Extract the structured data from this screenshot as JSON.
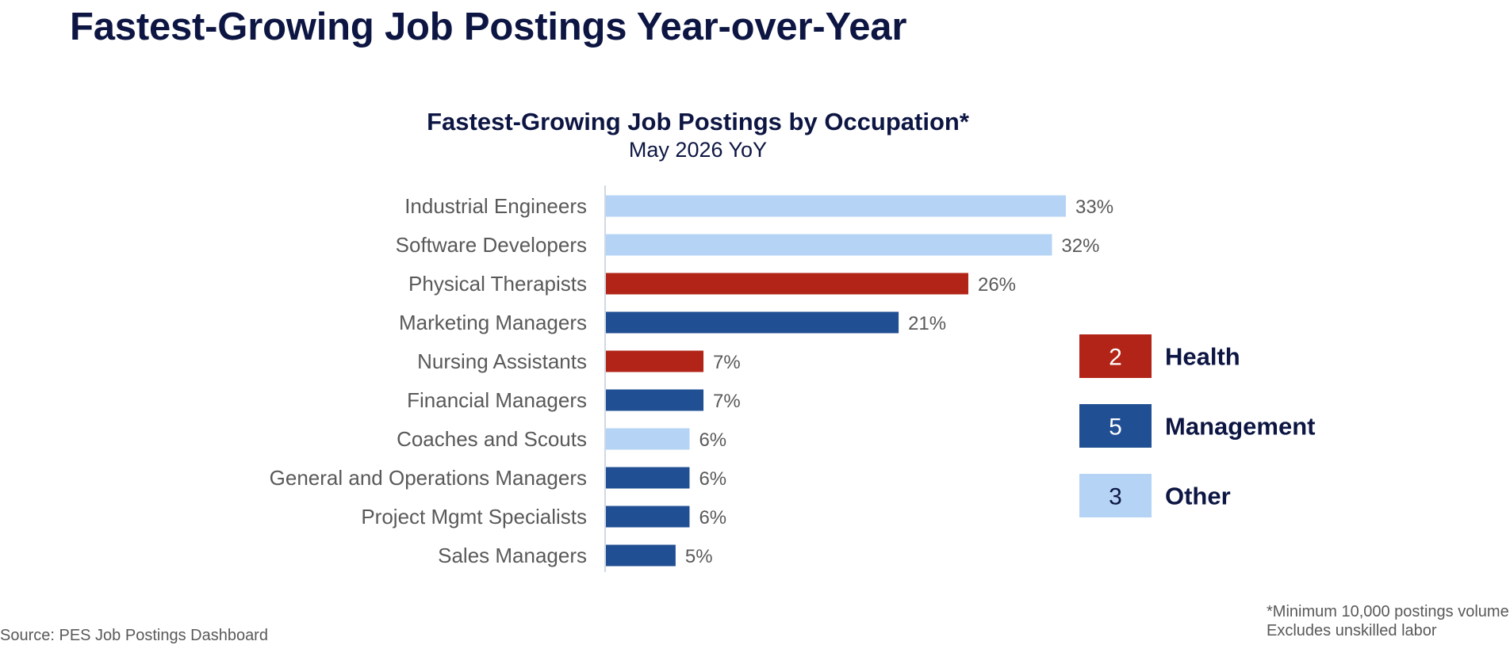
{
  "slide_title": "Fastest-Growing Job Postings Year-over-Year",
  "chart_data": {
    "type": "bar",
    "orientation": "horizontal",
    "title": "Fastest-Growing Job Postings by Occupation*",
    "subtitle": "May 2026 YoY",
    "categories": [
      "Industrial Engineers",
      "Software Developers",
      "Physical Therapists",
      "Marketing Managers",
      "Nursing Assistants",
      "Financial Managers",
      "Coaches and Scouts",
      "General and Operations Managers",
      "Project Mgmt Specialists",
      "Sales Managers"
    ],
    "values": [
      33,
      32,
      26,
      21,
      7,
      7,
      6,
      6,
      6,
      5
    ],
    "value_labels": [
      "33%",
      "32%",
      "26%",
      "21%",
      "7%",
      "7%",
      "6%",
      "6%",
      "6%",
      "5%"
    ],
    "groups": [
      "Other",
      "Other",
      "Health",
      "Management",
      "Health",
      "Management",
      "Other",
      "Management",
      "Management",
      "Management"
    ],
    "xlim": [
      0,
      33
    ],
    "grid": false,
    "legend_position": "right",
    "legend": [
      {
        "count": "2",
        "label": "Health",
        "color": "#b22418",
        "text_color": "#ffffff"
      },
      {
        "count": "5",
        "label": "Management",
        "color": "#214f93",
        "text_color": "#ffffff"
      },
      {
        "count": "3",
        "label": "Other",
        "color": "#b4d3f5",
        "text_color": "#0d1643"
      }
    ]
  },
  "footnote": {
    "line1": "*Minimum 10,000 postings volume",
    "line2": "Excludes unskilled labor"
  },
  "source": "Source:  PES Job Postings Dashboard"
}
